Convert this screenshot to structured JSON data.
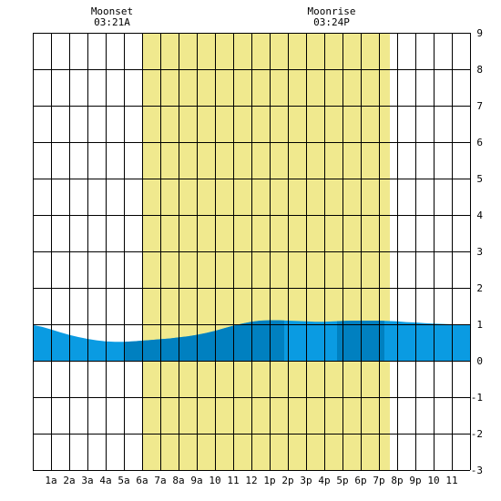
{
  "chart_data": {
    "type": "area",
    "title": "",
    "xlabel": "",
    "ylabel": "",
    "xlim": [
      0,
      24
    ],
    "ylim": [
      -3,
      9
    ],
    "grid": true,
    "x_tick_labels": [
      "1a",
      "2a",
      "3a",
      "4a",
      "5a",
      "6a",
      "7a",
      "8a",
      "9a",
      "10",
      "11",
      "12",
      "1p",
      "2p",
      "3p",
      "4p",
      "5p",
      "6p",
      "7p",
      "8p",
      "9p",
      "10",
      "11"
    ],
    "y_tick_labels": [
      "9",
      "8",
      "7",
      "6",
      "5",
      "4",
      "3",
      "2",
      "1",
      "0",
      "-1",
      "-2",
      "-3"
    ],
    "annotations": [
      {
        "title": "Moonset",
        "time": "03:21A",
        "x": 4.35
      },
      {
        "title": "Moonrise",
        "time": "03:24P",
        "x": 16.4
      }
    ],
    "daylight": {
      "start": 6.0,
      "end": 19.6,
      "color": "#f0e98e"
    },
    "tide_colors": {
      "light": "#0a9be2",
      "dark": "#0080c0"
    },
    "dark_bands": [
      [
        5.0,
        13.8
      ],
      [
        16.7,
        19.3
      ]
    ],
    "series": [
      {
        "x": [
          0,
          0.5,
          1,
          1.5,
          2,
          2.5,
          3,
          3.5,
          4,
          4.5,
          5,
          5.5,
          6,
          6.5,
          7,
          7.5,
          8,
          8.5,
          9,
          9.5,
          10,
          10.5,
          11,
          11.5,
          12,
          12.5,
          13,
          13.5,
          14,
          14.5,
          15,
          15.5,
          16,
          16.5,
          17,
          17.5,
          18,
          18.5,
          19,
          19.5,
          20,
          20.5,
          21,
          21.5,
          22,
          22.5,
          23,
          23.5,
          24
        ],
        "values": [
          0.98,
          0.93,
          0.86,
          0.78,
          0.71,
          0.65,
          0.6,
          0.56,
          0.53,
          0.52,
          0.52,
          0.53,
          0.55,
          0.57,
          0.59,
          0.61,
          0.64,
          0.67,
          0.71,
          0.76,
          0.82,
          0.89,
          0.96,
          1.02,
          1.07,
          1.1,
          1.11,
          1.11,
          1.1,
          1.09,
          1.08,
          1.07,
          1.07,
          1.08,
          1.09,
          1.1,
          1.1,
          1.1,
          1.1,
          1.09,
          1.08,
          1.06,
          1.05,
          1.03,
          1.02,
          1.01,
          1.0,
          0.99,
          0.98
        ]
      }
    ]
  }
}
